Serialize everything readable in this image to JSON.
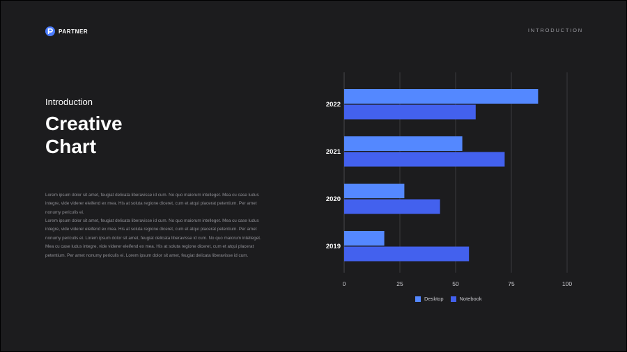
{
  "brand": {
    "name": "PARTNER"
  },
  "nav": {
    "label": "INTRODUCTION"
  },
  "content": {
    "subtitle": "Introduction",
    "title": "Creative Chart",
    "paragraphs": [
      "Lorem ipsum dolor sit amet, feugiat delicata liberavisse id cum. No quo maiorum intelleget. Mea cu case ludus integre, vide viderer eleifend ex mea. His at soluta regione diceret, cum et atqui placerat petentium. Per amet nonumy periculis ei.",
      "Lorem ipsum dolor sit amet, feugiat delicata liberavisse id cum. No quo maiorum intelleget. Mea cu case ludus integre, vide viderer eleifend ex mea. His at soluta regione diceret, cum et atqui placerat petentium. Per amet nonumy periculis ei. Lorem ipsum dolor sit amet, feugiat delicata liberavisse id cum. No quo maiorum intelleget. Mea cu case ludus integre, vide viderer eleifend ex mea. His at soluta regione diceret, cum et atqui placerat petentium. Per amet nonumy periculis ei. Lorem ipsum dolor sit amet, feugiat delicata liberavisse id cum."
    ]
  },
  "colors": {
    "background": "#1c1c1e",
    "desktop": "#5488ff",
    "notebook": "#4361ee",
    "grid": "#48484c"
  },
  "chart_data": {
    "type": "bar",
    "orientation": "horizontal",
    "categories": [
      "2022",
      "2021",
      "2020",
      "2019"
    ],
    "series": [
      {
        "name": "Desktop",
        "values": [
          87,
          53,
          27,
          18
        ]
      },
      {
        "name": "Notebook",
        "values": [
          59,
          72,
          43,
          56
        ]
      }
    ],
    "xlim": [
      0,
      100
    ],
    "xticks": [
      "0",
      "25",
      "50",
      "75",
      "100"
    ],
    "grid": true,
    "legend": "bottom"
  }
}
